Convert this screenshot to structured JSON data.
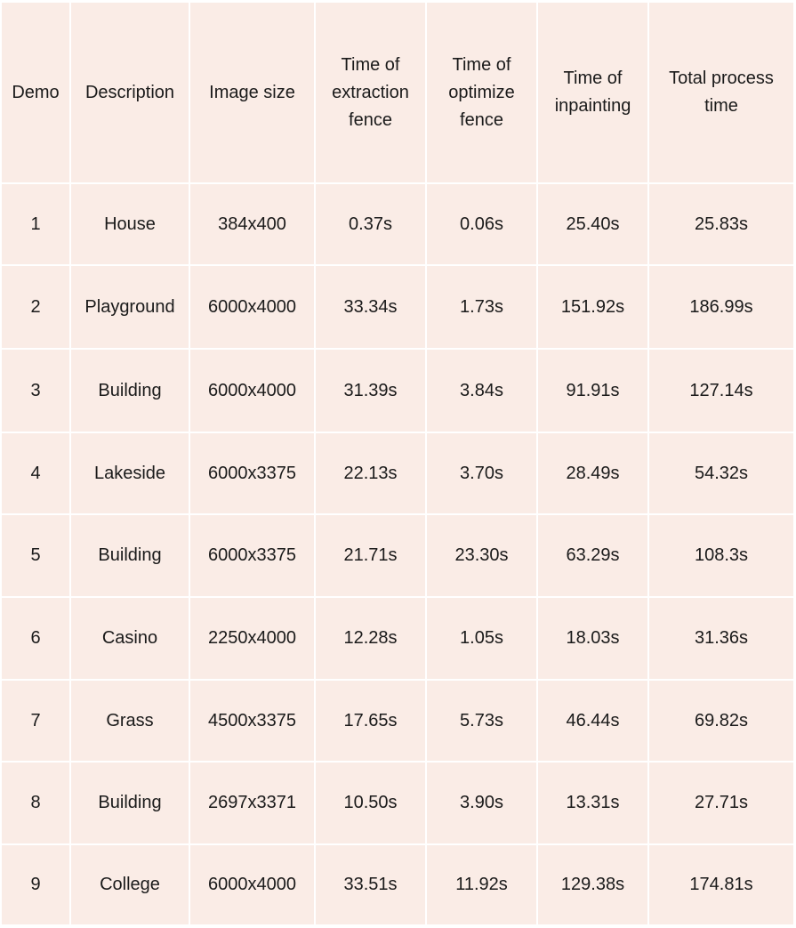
{
  "table": {
    "headers": [
      "Demo",
      "Description",
      "Image size",
      "Time of\nextraction\nfence",
      "Time of\noptimize\nfence",
      "Time of\ninpainting",
      "Total process\ntime"
    ],
    "rows": [
      [
        "1",
        "House",
        "384x400",
        "0.37s",
        "0.06s",
        "25.40s",
        "25.83s"
      ],
      [
        "2",
        "Playground",
        "6000x4000",
        "33.34s",
        "1.73s",
        "151.92s",
        "186.99s"
      ],
      [
        "3",
        "Building",
        "6000x4000",
        "31.39s",
        "3.84s",
        "91.91s",
        "127.14s"
      ],
      [
        "4",
        "Lakeside",
        "6000x3375",
        "22.13s",
        "3.70s",
        "28.49s",
        "54.32s"
      ],
      [
        "5",
        "Building",
        "6000x3375",
        "21.71s",
        "23.30s",
        "63.29s",
        "108.3s"
      ],
      [
        "6",
        "Casino",
        "2250x4000",
        "12.28s",
        "1.05s",
        "18.03s",
        "31.36s"
      ],
      [
        "7",
        "Grass",
        "4500x3375",
        "17.65s",
        "5.73s",
        "46.44s",
        "69.82s"
      ],
      [
        "8",
        "Building",
        "2697x3371",
        "10.50s",
        "3.90s",
        "13.31s",
        "27.71s"
      ],
      [
        "9",
        "College",
        "6000x4000",
        "33.51s",
        "11.92s",
        "129.38s",
        "174.81s"
      ]
    ]
  }
}
